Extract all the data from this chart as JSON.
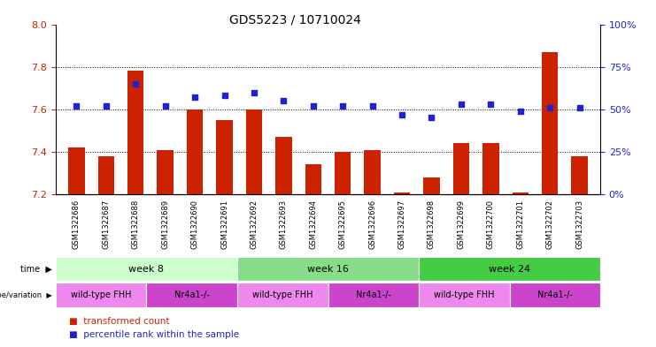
{
  "title": "GDS5223 / 10710024",
  "samples": [
    "GSM1322686",
    "GSM1322687",
    "GSM1322688",
    "GSM1322689",
    "GSM1322690",
    "GSM1322691",
    "GSM1322692",
    "GSM1322693",
    "GSM1322694",
    "GSM1322695",
    "GSM1322696",
    "GSM1322697",
    "GSM1322698",
    "GSM1322699",
    "GSM1322700",
    "GSM1322701",
    "GSM1322702",
    "GSM1322703"
  ],
  "transformed_count": [
    7.42,
    7.38,
    7.78,
    7.41,
    7.6,
    7.55,
    7.6,
    7.47,
    7.34,
    7.4,
    7.41,
    7.21,
    7.28,
    7.44,
    7.44,
    7.21,
    7.87,
    7.38
  ],
  "percentile_rank": [
    52,
    52,
    65,
    52,
    57,
    58,
    60,
    55,
    52,
    52,
    52,
    47,
    45,
    53,
    53,
    49,
    51,
    51
  ],
  "bar_color": "#cc2200",
  "dot_color": "#2222cc",
  "ylim_left": [
    7.2,
    8.0
  ],
  "ylim_right": [
    0,
    100
  ],
  "yticks_left": [
    7.2,
    7.4,
    7.6,
    7.8,
    8.0
  ],
  "yticks_right": [
    0,
    25,
    50,
    75,
    100
  ],
  "grid_values": [
    7.4,
    7.6,
    7.8
  ],
  "time_groups": [
    {
      "label": "week 8",
      "start": 0,
      "end": 6,
      "color": "#ccffcc"
    },
    {
      "label": "week 16",
      "start": 6,
      "end": 12,
      "color": "#88dd88"
    },
    {
      "label": "week 24",
      "start": 12,
      "end": 18,
      "color": "#44cc44"
    }
  ],
  "genotype_groups": [
    {
      "label": "wild-type FHH",
      "start": 0,
      "end": 3,
      "color": "#ee88ee"
    },
    {
      "label": "Nr4a1-/-",
      "start": 3,
      "end": 6,
      "color": "#cc44cc"
    },
    {
      "label": "wild-type FHH",
      "start": 6,
      "end": 9,
      "color": "#ee88ee"
    },
    {
      "label": "Nr4a1-/-",
      "start": 9,
      "end": 12,
      "color": "#cc44cc"
    },
    {
      "label": "wild-type FHH",
      "start": 12,
      "end": 15,
      "color": "#ee88ee"
    },
    {
      "label": "Nr4a1-/-",
      "start": 15,
      "end": 18,
      "color": "#cc44cc"
    }
  ],
  "left_label_color": "#cc2200",
  "right_label_color": "#2222cc",
  "bar_bottom": 7.2
}
